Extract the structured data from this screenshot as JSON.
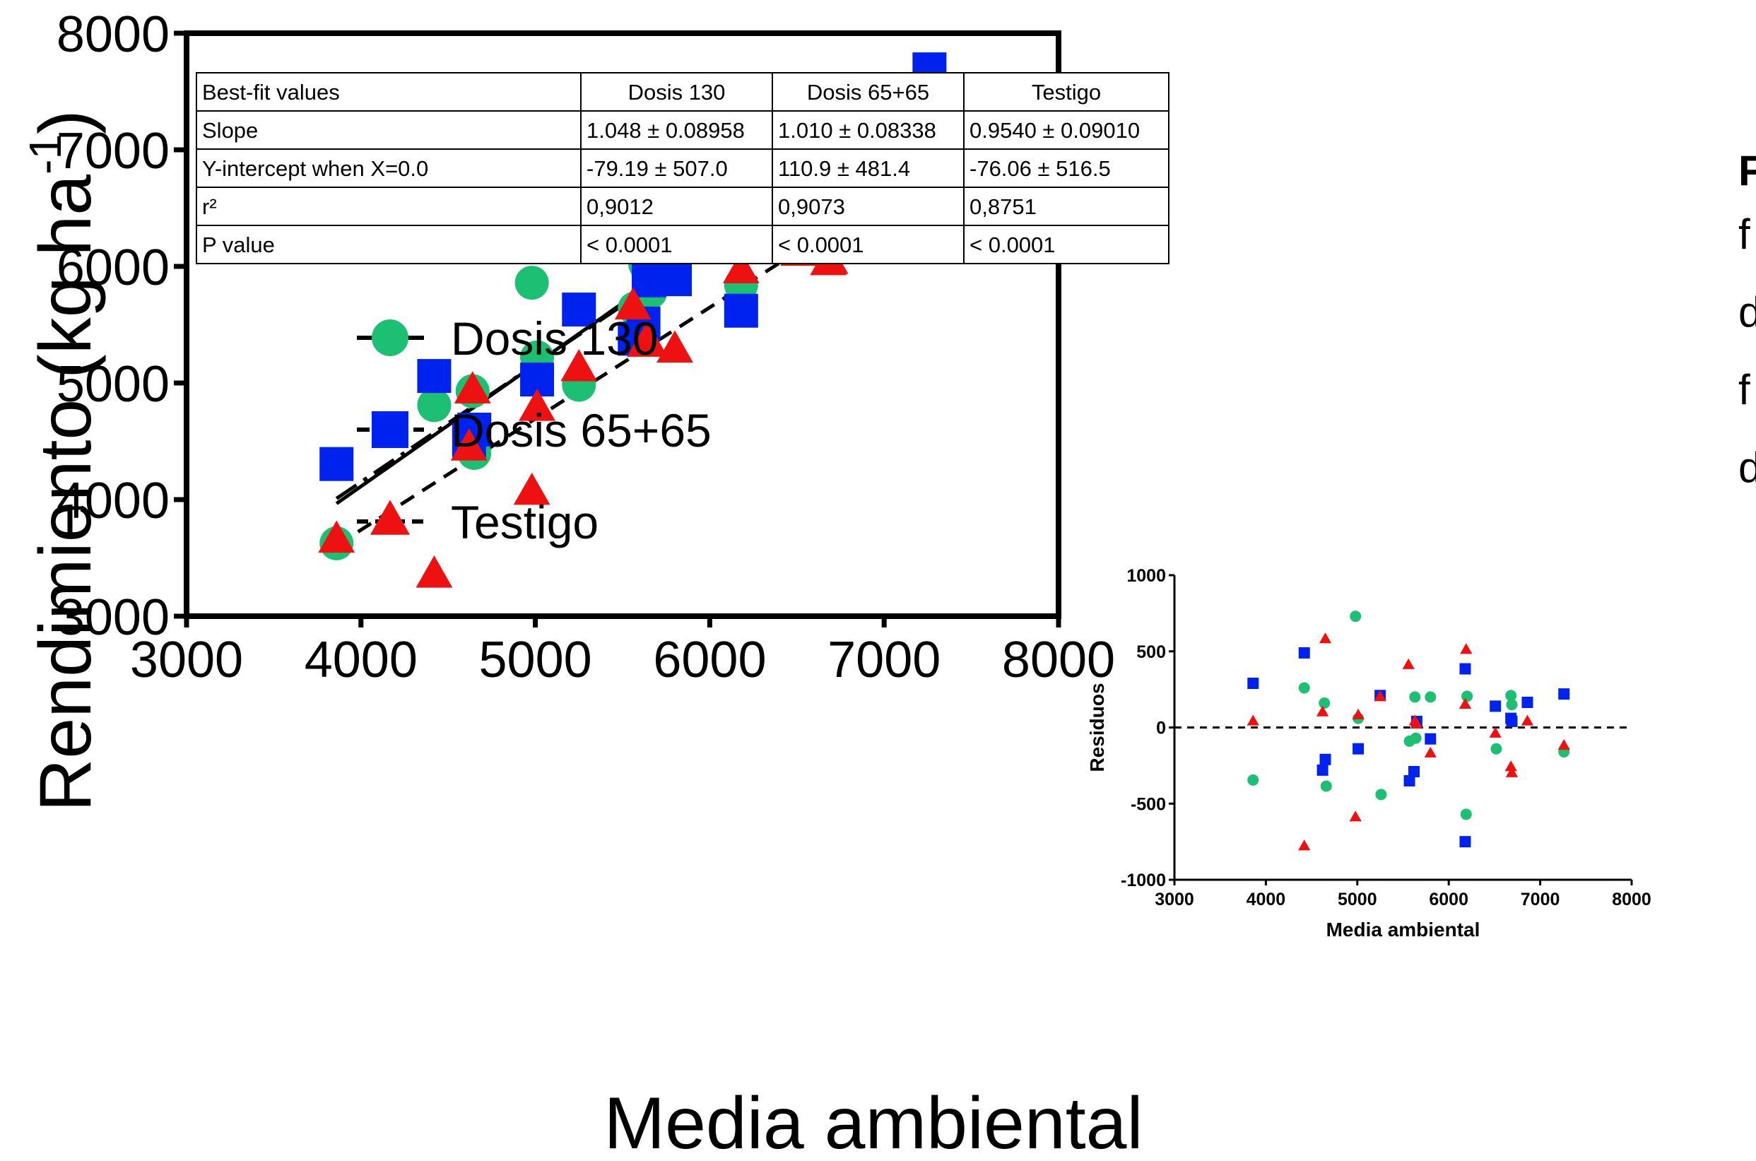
{
  "chart_data": [
    {
      "type": "scatter",
      "xlabel": "Media ambiental",
      "ylabel_main": "Rendimiento (kg ha",
      "ylabel_sup": "-1",
      "ylabel_end": ")",
      "xlim": [
        3000,
        8000
      ],
      "ylim": [
        3000,
        8000
      ],
      "x_ticks": [
        "3000",
        "4000",
        "5000",
        "6000",
        "7000",
        "8000"
      ],
      "y_ticks": [
        "3000",
        "4000",
        "5000",
        "6000",
        "7000",
        "8000"
      ],
      "legend_position": "top-left",
      "series": [
        {
          "name": "Dosis 130",
          "marker": "circle",
          "line": "solid",
          "color": "#1dbf73",
          "fit": {
            "slope": 1.048,
            "intercept": -79.19
          },
          "points": [
            [
              3860,
              3625
            ],
            [
              4420,
              4810
            ],
            [
              4640,
              4930
            ],
            [
              4650,
              4400
            ],
            [
              4980,
              5860
            ],
            [
              5010,
              5220
            ],
            [
              5250,
              4985
            ],
            [
              5570,
              5640
            ],
            [
              5630,
              6020
            ],
            [
              5660,
              5780
            ],
            [
              5800,
              6190
            ],
            [
              6180,
              5840
            ],
            [
              6190,
              6620
            ],
            [
              6520,
              6610
            ],
            [
              6680,
              7120
            ],
            [
              6690,
              7050
            ],
            [
              7260,
              7380
            ]
          ]
        },
        {
          "name": "Dosis 65+65",
          "marker": "square",
          "line": "dash-dot",
          "color": "#0022ee",
          "fit": {
            "slope": 1.01,
            "intercept": 110.9
          },
          "points": [
            [
              3860,
              4305
            ],
            [
              4420,
              5060
            ],
            [
              4620,
              4510
            ],
            [
              4650,
              4600
            ],
            [
              5010,
              5030
            ],
            [
              5250,
              5630
            ],
            [
              5570,
              5380
            ],
            [
              5620,
              5510
            ],
            [
              5650,
              5880
            ],
            [
              5800,
              5890
            ],
            [
              6180,
              5620
            ],
            [
              6180,
              6740
            ],
            [
              6510,
              6840
            ],
            [
              6680,
              6900
            ],
            [
              6690,
              6940
            ],
            [
              6860,
              7210
            ],
            [
              7260,
              7690
            ]
          ]
        },
        {
          "name": "Testigo",
          "marker": "triangle",
          "line": "dashed",
          "color": "#ee1111",
          "fit": {
            "slope": 0.954,
            "intercept": -76.06
          },
          "points": [
            [
              3860,
              3650
            ],
            [
              4420,
              3350
            ],
            [
              4620,
              4440
            ],
            [
              4640,
              4930
            ],
            [
              4980,
              4060
            ],
            [
              5010,
              4780
            ],
            [
              5250,
              5120
            ],
            [
              5560,
              5650
            ],
            [
              5630,
              5330
            ],
            [
              5650,
              5340
            ],
            [
              5800,
              5280
            ],
            [
              6180,
              5960
            ],
            [
              6190,
              6350
            ],
            [
              6510,
              6110
            ],
            [
              6680,
              6030
            ],
            [
              6690,
              6040
            ],
            [
              6860,
              6490
            ],
            [
              7260,
              6740
            ]
          ]
        }
      ]
    },
    {
      "type": "scatter",
      "xlabel": "Media ambiental",
      "ylabel": "Residuos",
      "xlim": [
        3000,
        8000
      ],
      "ylim": [
        -1000,
        1000
      ],
      "x_ticks": [
        "3000",
        "4000",
        "5000",
        "6000",
        "7000",
        "8000"
      ],
      "y_ticks": [
        "-1000",
        "-500",
        "0",
        "500",
        "1000"
      ],
      "zero_line": "dashed",
      "series": [
        {
          "name": "Dosis 130",
          "marker": "circle",
          "color": "#1dbf73",
          "points": [
            [
              3860,
              -345
            ],
            [
              4420,
              260
            ],
            [
              4640,
              160
            ],
            [
              4660,
              -385
            ],
            [
              4980,
              730
            ],
            [
              5010,
              60
            ],
            [
              5260,
              -440
            ],
            [
              5570,
              -90
            ],
            [
              5630,
              200
            ],
            [
              5640,
              -70
            ],
            [
              5800,
              200
            ],
            [
              6190,
              -570
            ],
            [
              6200,
              205
            ],
            [
              6520,
              -140
            ],
            [
              6680,
              210
            ],
            [
              6690,
              150
            ],
            [
              7260,
              -160
            ]
          ]
        },
        {
          "name": "Dosis 65+65",
          "marker": "square",
          "color": "#0022ee",
          "points": [
            [
              3860,
              290
            ],
            [
              4420,
              490
            ],
            [
              4620,
              -280
            ],
            [
              4650,
              -210
            ],
            [
              5010,
              -140
            ],
            [
              5250,
              210
            ],
            [
              5570,
              -350
            ],
            [
              5620,
              -290
            ],
            [
              5650,
              40
            ],
            [
              5800,
              -75
            ],
            [
              6180,
              -750
            ],
            [
              6180,
              385
            ],
            [
              6510,
              140
            ],
            [
              6680,
              60
            ],
            [
              6690,
              40
            ],
            [
              6860,
              165
            ],
            [
              7260,
              220
            ]
          ]
        },
        {
          "name": "Testigo",
          "marker": "triangle",
          "color": "#ee1111",
          "points": [
            [
              3860,
              40
            ],
            [
              4420,
              -780
            ],
            [
              4620,
              100
            ],
            [
              4650,
              580
            ],
            [
              4980,
              -590
            ],
            [
              5010,
              80
            ],
            [
              5250,
              200
            ],
            [
              5560,
              410
            ],
            [
              5630,
              40
            ],
            [
              5650,
              20
            ],
            [
              5800,
              -170
            ],
            [
              6180,
              150
            ],
            [
              6190,
              510
            ],
            [
              6510,
              -40
            ],
            [
              6680,
              -260
            ],
            [
              6690,
              -300
            ],
            [
              6860,
              40
            ],
            [
              7260,
              -120
            ]
          ]
        }
      ]
    }
  ],
  "fit_table": {
    "headers": [
      "Best-fit values",
      "Dosis 130",
      "Dosis 65+65",
      "Testigo"
    ],
    "rows": [
      [
        "Slope",
        "1.048 ± 0.08958",
        "1.010 ± 0.08338",
        "0.9540 ± 0.09010"
      ],
      [
        "Y-intercept when X=0.0",
        "-79.19 ± 507.0",
        "110.9 ± 481.4",
        "-76.06 ± 516.5"
      ],
      [
        "r²",
        "0,9012",
        "0,9073",
        "0,8751"
      ],
      [
        "P value",
        "< 0.0001",
        "< 0.0001",
        "< 0.0001"
      ]
    ]
  },
  "side_text": {
    "line1": "F",
    "line2": "f",
    "line3": "d",
    "line4": "f",
    "line5": "d"
  }
}
